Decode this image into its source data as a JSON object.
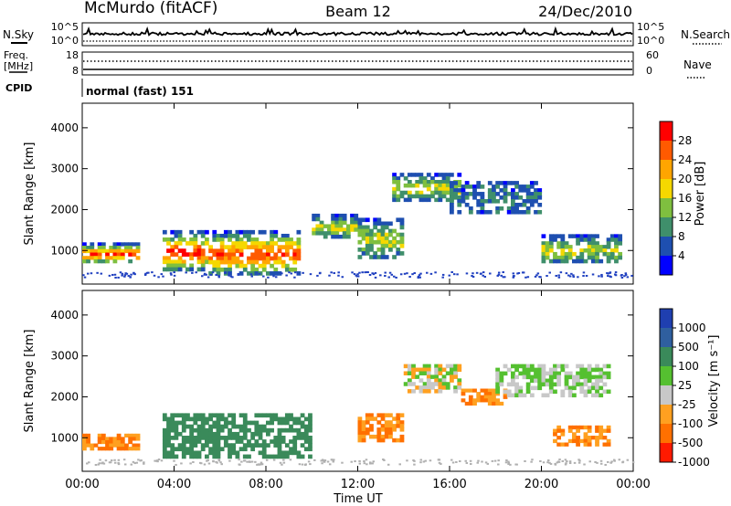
{
  "header": {
    "station": "McMurdo (fitACF)",
    "beam": "Beam 12",
    "date": "24/Dec/2010"
  },
  "top_panels": {
    "nsky_label": "N.Sky",
    "nsky_ticks": [
      "10^5",
      "10^0"
    ],
    "nsearch_label": "N.Search",
    "nsearch_ticks": [
      "10^5",
      "10^0"
    ],
    "freq_label_1": "Freq.",
    "freq_label_2": "[MHz]",
    "freq_ticks": [
      "18",
      "8"
    ],
    "nave_label": "Nave",
    "nave_ticks": [
      "60",
      "0"
    ],
    "cpid_label": "CPID",
    "cpid_value": "normal (fast) 151"
  },
  "chart_data": [
    {
      "type": "heatmap",
      "title": "",
      "xlabel": "",
      "ylabel": "Slant Range [km]",
      "yticks": [
        "1000",
        "2000",
        "3000",
        "4000"
      ],
      "ylim": [
        180,
        4600
      ],
      "colorbar": {
        "label": "Power [dB]",
        "ticks": [
          "4",
          "8",
          "12",
          "16",
          "20",
          "24",
          "28"
        ],
        "colors": [
          "#0000ff",
          "#1e4fb0",
          "#3f8f6b",
          "#7fbf3f",
          "#f5d800",
          "#ffa500",
          "#ff5a00",
          "#ff0000"
        ]
      },
      "echo_regions": [
        {
          "t": [
            0.0,
            2.5
          ],
          "r": [
            700,
            1200
          ],
          "level": "strong"
        },
        {
          "t": [
            3.5,
            5.5
          ],
          "r": [
            500,
            1500
          ],
          "level": "strong"
        },
        {
          "t": [
            5.5,
            9.5
          ],
          "r": [
            400,
            1500
          ],
          "level": "strong"
        },
        {
          "t": [
            10.0,
            12.0
          ],
          "r": [
            1300,
            1900
          ],
          "level": "moderate"
        },
        {
          "t": [
            12.0,
            14.0
          ],
          "r": [
            800,
            1800
          ],
          "level": "moderate"
        },
        {
          "t": [
            13.5,
            16.5
          ],
          "r": [
            2200,
            2900
          ],
          "level": "moderate"
        },
        {
          "t": [
            16.0,
            20.0
          ],
          "r": [
            1900,
            2700
          ],
          "level": "weak"
        },
        {
          "t": [
            20.0,
            23.5
          ],
          "r": [
            700,
            1400
          ],
          "level": "moderate"
        }
      ]
    },
    {
      "type": "heatmap",
      "title": "",
      "xlabel": "Time UT",
      "ylabel": "Slant Range [km]",
      "yticks": [
        "1000",
        "2000",
        "3000",
        "4000"
      ],
      "ylim": [
        180,
        4600
      ],
      "xticks": [
        "00:00",
        "04:00",
        "08:00",
        "12:00",
        "16:00",
        "20:00",
        "00:00"
      ],
      "xlim": [
        0,
        24
      ],
      "colorbar": {
        "label": "Velocity [m s⁻¹]",
        "ticks": [
          "1000",
          "500",
          "100",
          "25",
          "-25",
          "-100",
          "-500",
          "-1000"
        ],
        "colors": [
          "#1f3fb0",
          "#2f5f9f",
          "#3a8a5a",
          "#55c030",
          "#c8c8c8",
          "#ffa020",
          "#ff7000",
          "#ff1a00"
        ]
      },
      "echo_regions": [
        {
          "t": [
            0.0,
            2.5
          ],
          "r": [
            700,
            1100
          ],
          "level": "negative"
        },
        {
          "t": [
            3.5,
            10.0
          ],
          "r": [
            500,
            1600
          ],
          "level": "positive"
        },
        {
          "t": [
            12.0,
            14.0
          ],
          "r": [
            900,
            1600
          ],
          "level": "negative"
        },
        {
          "t": [
            14.0,
            16.5
          ],
          "r": [
            2100,
            2800
          ],
          "level": "mixed"
        },
        {
          "t": [
            16.5,
            18.5
          ],
          "r": [
            1800,
            2200
          ],
          "level": "negative"
        },
        {
          "t": [
            18.0,
            23.0
          ],
          "r": [
            2000,
            2800
          ],
          "level": "near-zero"
        },
        {
          "t": [
            20.5,
            23.0
          ],
          "r": [
            800,
            1300
          ],
          "level": "negative"
        }
      ]
    }
  ],
  "time_axis": {
    "xlabel": "Time UT",
    "ticks": [
      "00:00",
      "04:00",
      "08:00",
      "12:00",
      "16:00",
      "20:00",
      "00:00"
    ]
  }
}
